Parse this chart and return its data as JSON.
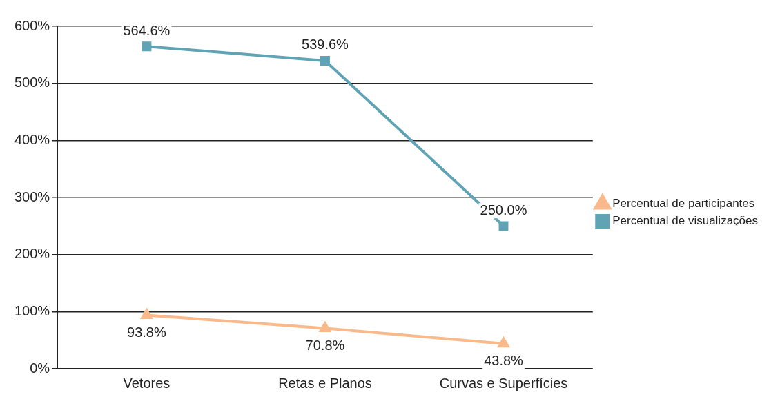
{
  "chart_data": {
    "type": "line",
    "categories": [
      "Vetores",
      "Retas e Planos",
      "Curvas e Superfícies"
    ],
    "series": [
      {
        "name": "Percentual de participantes",
        "color": "#f9b98a",
        "marker": "triangle",
        "values": [
          93.8,
          70.8,
          43.8
        ],
        "value_labels": [
          "93.8%",
          "70.8%",
          "43.8%"
        ]
      },
      {
        "name": "Percentual de visualizações",
        "color": "#5fa3b5",
        "marker": "square",
        "values": [
          564.6,
          539.6,
          250.0
        ],
        "value_labels": [
          "564.6%",
          "539.6%",
          "250.0%"
        ]
      }
    ],
    "ylim": [
      0,
      600
    ],
    "yticks": [
      {
        "value": 0,
        "label": "0%"
      },
      {
        "value": 100,
        "label": "100%"
      },
      {
        "value": 200,
        "label": "200%"
      },
      {
        "value": 300,
        "label": "300%"
      },
      {
        "value": 400,
        "label": "400%"
      },
      {
        "value": 500,
        "label": "500%"
      },
      {
        "value": 600,
        "label": "600%"
      }
    ],
    "grid": "y",
    "legend": "right"
  }
}
